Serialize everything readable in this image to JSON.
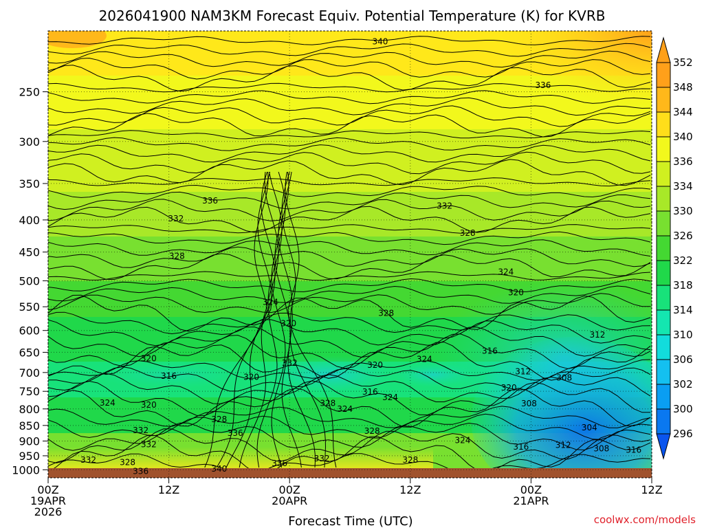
{
  "chart_data": {
    "type": "heatmap",
    "title": "2026041900 NAM3KM Forecast Equiv. Potential Temperature (K) for KVRB",
    "xlabel": "Forecast Time (UTC)",
    "ylabel": "",
    "x_range_hours": [
      0,
      60
    ],
    "x_ticks": [
      {
        "hour": 0,
        "lines": [
          "00Z",
          "19APR",
          "2026"
        ]
      },
      {
        "hour": 12,
        "lines": [
          "12Z"
        ]
      },
      {
        "hour": 24,
        "lines": [
          "00Z",
          "20APR"
        ]
      },
      {
        "hour": 36,
        "lines": [
          "12Z"
        ]
      },
      {
        "hour": 48,
        "lines": [
          "00Z",
          "21APR"
        ]
      },
      {
        "hour": 60,
        "lines": [
          "12Z"
        ]
      }
    ],
    "y_scale": "log",
    "y_range_hpa": [
      1030,
      200
    ],
    "y_ticks": [
      250,
      300,
      350,
      400,
      450,
      500,
      550,
      600,
      650,
      700,
      750,
      800,
      850,
      900,
      950,
      1000
    ],
    "colorbar": {
      "levels": [
        296,
        300,
        302,
        306,
        310,
        314,
        318,
        322,
        326,
        330,
        334,
        336,
        340,
        344,
        348,
        352
      ],
      "label_values": [
        "296",
        "300",
        "302",
        "306",
        "310",
        "314",
        "318",
        "322",
        "326",
        "330",
        "334",
        "336",
        "340",
        "344",
        "348",
        "352"
      ],
      "colors": [
        "#0a55ee",
        "#0a78f0",
        "#0a9ef2",
        "#14c0f0",
        "#12dcdc",
        "#14e6b0",
        "#18e27a",
        "#20d84a",
        "#44d832",
        "#78e030",
        "#a8e828",
        "#d0f020",
        "#f2f81c",
        "#ffde1a",
        "#ffb81a",
        "#ffa01a"
      ],
      "extend": "both"
    },
    "contour_labels": [
      {
        "text": "340",
        "hour": 33.0,
        "hpa": 208
      },
      {
        "text": "336",
        "hour": 49.2,
        "hpa": 244
      },
      {
        "text": "336",
        "hour": 16.1,
        "hpa": 373
      },
      {
        "text": "332",
        "hour": 12.7,
        "hpa": 398
      },
      {
        "text": "332",
        "hour": 39.4,
        "hpa": 380
      },
      {
        "text": "328",
        "hour": 12.8,
        "hpa": 457
      },
      {
        "text": "328",
        "hour": 41.7,
        "hpa": 420
      },
      {
        "text": "324",
        "hour": 22.1,
        "hpa": 541
      },
      {
        "text": "324",
        "hour": 45.5,
        "hpa": 484
      },
      {
        "text": "320",
        "hour": 23.9,
        "hpa": 585
      },
      {
        "text": "320",
        "hour": 46.5,
        "hpa": 522
      },
      {
        "text": "328",
        "hour": 33.6,
        "hpa": 563
      },
      {
        "text": "312",
        "hour": 54.6,
        "hpa": 610
      },
      {
        "text": "320",
        "hour": 10.0,
        "hpa": 665
      },
      {
        "text": "332",
        "hour": 24.0,
        "hpa": 676
      },
      {
        "text": "320",
        "hour": 32.5,
        "hpa": 681
      },
      {
        "text": "324",
        "hour": 37.4,
        "hpa": 667
      },
      {
        "text": "316",
        "hour": 43.9,
        "hpa": 647
      },
      {
        "text": "312",
        "hour": 47.2,
        "hpa": 698
      },
      {
        "text": "316",
        "hour": 12.0,
        "hpa": 709
      },
      {
        "text": "320",
        "hour": 20.2,
        "hpa": 712
      },
      {
        "text": "308",
        "hour": 51.3,
        "hpa": 714
      },
      {
        "text": "320",
        "hour": 45.8,
        "hpa": 740
      },
      {
        "text": "316",
        "hour": 32.0,
        "hpa": 752
      },
      {
        "text": "324",
        "hour": 34.0,
        "hpa": 767
      },
      {
        "text": "324",
        "hour": 5.9,
        "hpa": 782
      },
      {
        "text": "320",
        "hour": 10.0,
        "hpa": 788
      },
      {
        "text": "308",
        "hour": 47.8,
        "hpa": 784
      },
      {
        "text": "328",
        "hour": 27.8,
        "hpa": 783
      },
      {
        "text": "324",
        "hour": 29.5,
        "hpa": 800
      },
      {
        "text": "328",
        "hour": 17.0,
        "hpa": 831
      },
      {
        "text": "304",
        "hour": 53.8,
        "hpa": 857
      },
      {
        "text": "332",
        "hour": 9.2,
        "hpa": 866
      },
      {
        "text": "336",
        "hour": 18.6,
        "hpa": 874
      },
      {
        "text": "328",
        "hour": 32.2,
        "hpa": 868
      },
      {
        "text": "324",
        "hour": 41.2,
        "hpa": 898
      },
      {
        "text": "332",
        "hour": 10.0,
        "hpa": 911
      },
      {
        "text": "316",
        "hour": 47.0,
        "hpa": 920
      },
      {
        "text": "312",
        "hour": 51.2,
        "hpa": 914
      },
      {
        "text": "308",
        "hour": 55.0,
        "hpa": 925
      },
      {
        "text": "316",
        "hour": 58.2,
        "hpa": 930
      },
      {
        "text": "332",
        "hour": 4.0,
        "hpa": 965
      },
      {
        "text": "328",
        "hour": 7.9,
        "hpa": 973
      },
      {
        "text": "336",
        "hour": 23.0,
        "hpa": 977
      },
      {
        "text": "332",
        "hour": 27.2,
        "hpa": 960
      },
      {
        "text": "328",
        "hour": 36.0,
        "hpa": 965
      },
      {
        "text": "336",
        "hour": 9.2,
        "hpa": 1006
      },
      {
        "text": "340",
        "hour": 17.0,
        "hpa": 997
      }
    ]
  },
  "credit": "coolwx.com/models"
}
